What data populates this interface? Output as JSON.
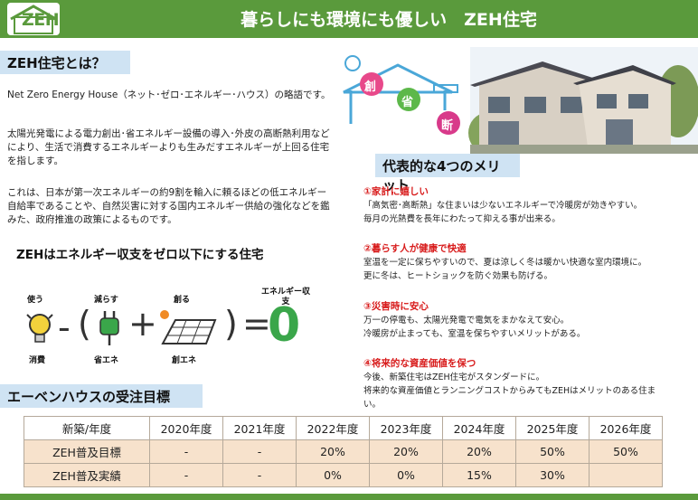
{
  "header": {
    "logo": "ZEH",
    "title": "暮らしにも環境にも優しい　ZEH住宅",
    "color": "#5a9a3c"
  },
  "about": {
    "heading": "ZEH住宅とは？",
    "p1": "Net Zero Energy House（ネット･ゼロ･エネルギー･ハウス）の略語です。",
    "p2": "太陽光発電による電力創出･省エネルギー設備の導入･外皮の高断熱利用などにより、生活で消費するエネルギーよりも生みだすエネルギーが上回る住宅を指します。",
    "p3": "これは、日本が第一次エネルギーの約9割を輸入に頼るほどの低エネルギー自給率であることや、自然災害に対する国内エネルギー供給の強化などを鑑みた、政府推進の政策によるものです。"
  },
  "zero": {
    "title": "ZEHはエネルギー収支をゼロ以下にする住宅",
    "use_label": "使う",
    "reduce_label": "減らす",
    "create_label": "創る",
    "consume_label": "消費",
    "save_label": "省エネ",
    "gen_label": "創エネ",
    "balance_label": "エネルギー収支",
    "minus": "-",
    "open_paren": "(",
    "plus": "+",
    "close_paren": ")",
    "equals": "=",
    "result": "0"
  },
  "illustration": {
    "badge1": "創",
    "badge2": "省",
    "badge3": "断"
  },
  "merits": {
    "heading": "代表的な4つのメリット",
    "items": [
      {
        "title": "①家計に嬉しい",
        "lines": [
          "「高気密･高断熱」な住まいは少ないエネルギーで冷暖房が効きやすい。",
          "毎月の光熱費を長年にわたって抑える事が出来る。"
        ]
      },
      {
        "title": "②暮らす人が健康で快適",
        "lines": [
          "室温を一定に保ちやすいので、夏は涼しく冬は暖かい快適な室内環境に。",
          "更に冬は、ヒートショックを防ぐ効果も防げる。"
        ]
      },
      {
        "title": "③災害時に安心",
        "lines": [
          "万一の停電も、太陽光発電で電気をまかなえて安心。",
          "冷暖房が止まっても、室温を保ちやすいメリットがある。"
        ]
      },
      {
        "title": "④将来的な資産価値を保つ",
        "lines": [
          "今後、新築住宅はZEH住宅がスタンダードに。",
          "将来的な資産価値とランニングコストからみてもZEHはメリットのある住ま",
          "い。"
        ]
      }
    ]
  },
  "targets": {
    "heading": "エーベンハウスの受注目標",
    "columns": [
      "新築/年度",
      "2020年度",
      "2021年度",
      "2022年度",
      "2023年度",
      "2024年度",
      "2025年度",
      "2026年度"
    ],
    "rows": [
      [
        "ZEH普及目標",
        "-",
        "-",
        "20%",
        "20%",
        "20%",
        "50%",
        "50%"
      ],
      [
        "ZEH普及実績",
        "-",
        "-",
        "0%",
        "0%",
        "15%",
        "30%",
        ""
      ]
    ]
  }
}
